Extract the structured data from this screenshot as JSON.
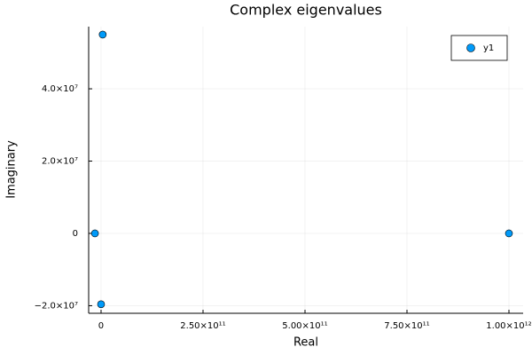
{
  "chart_data": {
    "type": "scatter",
    "title": "Complex eigenvalues",
    "x_label": "Real",
    "y_label": "Imaginary",
    "series": [
      {
        "name": "y1",
        "color": "#009af9",
        "x": [
          4000000000,
          -15000000000,
          0,
          1000000000000
        ],
        "values": [
          55000000,
          0,
          -19600000,
          0
        ]
      }
    ],
    "xlim": [
      -30400000000,
      1034800000000
    ],
    "ylim": [
      -22100000,
      57200000
    ],
    "xticks": [
      0,
      {
        "value": 250000000000,
        "label": "2.50×10¹¹"
      },
      {
        "value": 500000000000,
        "label": "5.00×10¹¹"
      },
      {
        "value": 750000000000,
        "label": "7.50×10¹¹"
      },
      {
        "value": 1000000000000,
        "label": "1.00×10¹²"
      }
    ],
    "yticks": [
      {
        "value": -20000000,
        "label": "−2.0×10⁷"
      },
      0,
      {
        "value": 20000000,
        "label": "2.0×10⁷"
      },
      {
        "value": 40000000,
        "label": "4.0×10⁷"
      }
    ],
    "grid": true,
    "legend": "topright"
  }
}
